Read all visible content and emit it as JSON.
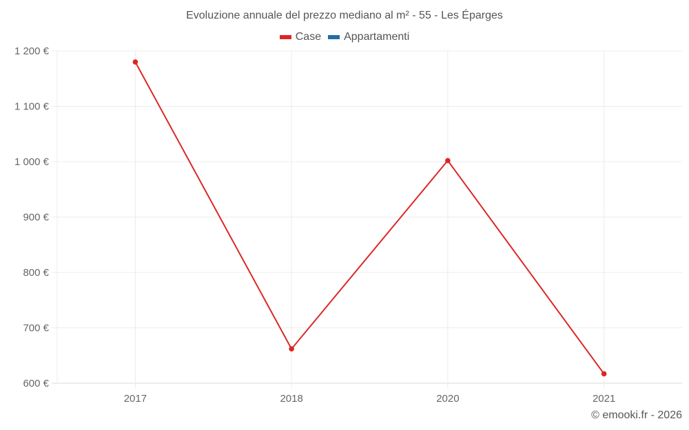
{
  "title": "Evoluzione annuale del prezzo mediano al m² - 55 - Les Éparges",
  "legend": [
    {
      "label": "Case",
      "color": "#dc2626"
    },
    {
      "label": "Appartamenti",
      "color": "#1f6fa8"
    }
  ],
  "credit": "© emooki.fr - 2026",
  "chart_data": {
    "type": "line",
    "title": "Evoluzione annuale del prezzo mediano al m² - 55 - Les Éparges",
    "xlabel": "",
    "ylabel": "",
    "categories": [
      "2017",
      "2018",
      "2020",
      "2021"
    ],
    "series": [
      {
        "name": "Case",
        "color": "#dc2626",
        "values": [
          1180,
          662,
          1002,
          617
        ]
      },
      {
        "name": "Appartamenti",
        "color": "#1f6fa8",
        "values": [
          null,
          null,
          null,
          null
        ]
      }
    ],
    "ylim": [
      600,
      1200
    ],
    "yticks": [
      600,
      700,
      800,
      900,
      1000,
      1100,
      1200
    ],
    "ytick_labels": [
      "600 €",
      "700 €",
      "800 €",
      "900 €",
      "1 000 €",
      "1 100 €",
      "1 200 €"
    ],
    "grid": true,
    "legend_position": "top"
  }
}
